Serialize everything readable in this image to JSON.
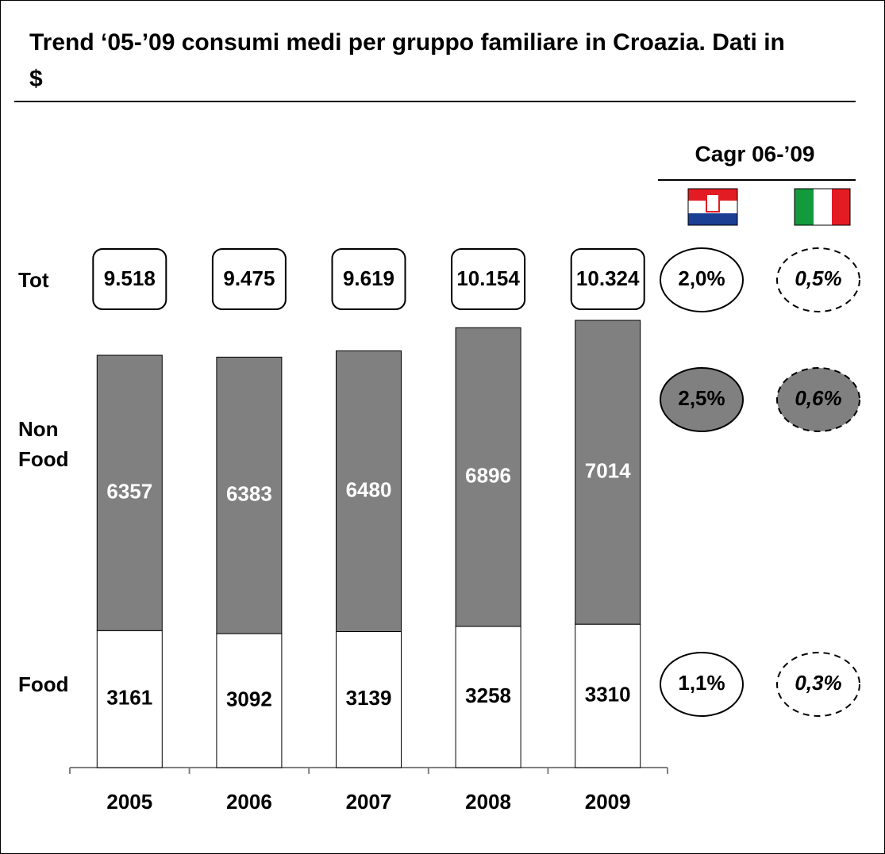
{
  "chart_data": {
    "type": "bar",
    "stacked": true,
    "title": "Trend  ‘05-’09 consumi medi per gruppo familiare in Croazia. Dati in $",
    "categories": [
      "2005",
      "2006",
      "2007",
      "2008",
      "2009"
    ],
    "series": [
      {
        "name": "Food",
        "color": "#ffffff",
        "values": [
          3161,
          3092,
          3139,
          3258,
          3310
        ],
        "cagr": [
          "1,1%",
          "0,3%"
        ]
      },
      {
        "name": "Non Food",
        "color": "#808080",
        "values": [
          6357,
          6383,
          6480,
          6896,
          7014
        ],
        "cagr": [
          "2,5%",
          "0,6%"
        ]
      }
    ],
    "totals": {
      "label": "Tot",
      "values": [
        9518,
        9475,
        9619,
        10154,
        10324
      ],
      "value_labels": [
        "9.518",
        "9.475",
        "9.619",
        "10.154",
        "10.324"
      ],
      "cagr": [
        "2,0%",
        "0,5%"
      ]
    },
    "cagr_title": "Cagr 06-’09"
  }
}
